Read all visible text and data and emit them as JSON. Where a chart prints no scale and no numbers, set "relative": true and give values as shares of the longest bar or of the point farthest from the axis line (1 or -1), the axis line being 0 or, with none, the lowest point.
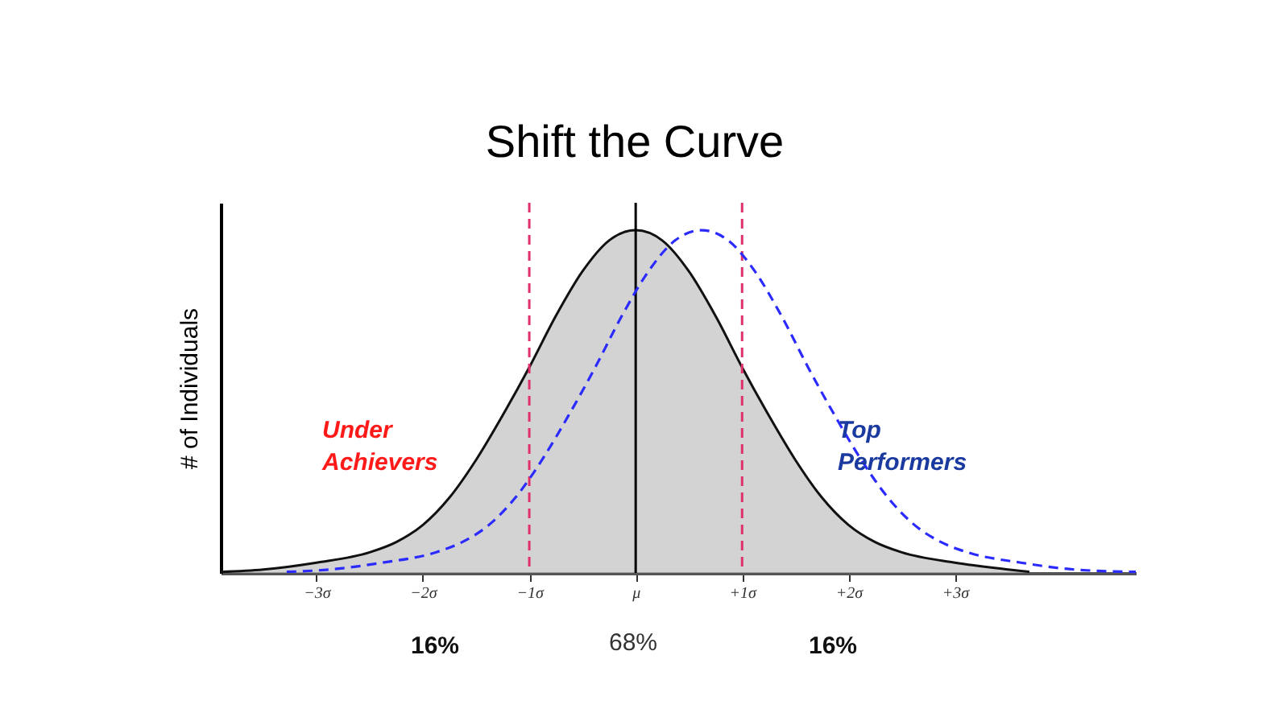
{
  "chart_data": {
    "type": "area",
    "title": "Shift the Curve",
    "ylabel": "# of Individuals",
    "relative": true,
    "xlim": [
      -3.9,
      4.7
    ],
    "xticks": [
      {
        "value": -3,
        "label": "−3σ"
      },
      {
        "value": -2,
        "label": "−2σ"
      },
      {
        "value": -1,
        "label": "−1σ"
      },
      {
        "value": 0,
        "label": "μ"
      },
      {
        "value": 1,
        "label": "+1σ"
      },
      {
        "value": 2,
        "label": "+2σ"
      },
      {
        "value": 3,
        "label": "+3σ"
      }
    ],
    "series": [
      {
        "type": "area",
        "color": "#c0c0c0",
        "x": [
          -3.9,
          -3.5,
          -3,
          -2.5,
          -2.25,
          -2,
          -1.75,
          -1.5,
          -1.25,
          -1,
          -0.75,
          -0.5,
          -0.25,
          0,
          0.25,
          0.5,
          0.75,
          1,
          1.25,
          1.5,
          1.75,
          2,
          2.25,
          2.5,
          3,
          3.5,
          3.7
        ],
        "values": [
          0.003,
          0.01,
          0.03,
          0.06,
          0.09,
          0.14,
          0.22,
          0.33,
          0.46,
          0.6,
          0.75,
          0.88,
          0.97,
          1,
          0.97,
          0.88,
          0.75,
          0.6,
          0.46,
          0.33,
          0.22,
          0.14,
          0.09,
          0.06,
          0.03,
          0.01,
          0.003
        ]
      },
      {
        "type": "line",
        "color": "#2b2bff",
        "line_style": "dashed",
        "x": [
          -3.28,
          -2.88,
          -2.38,
          -1.88,
          -1.63,
          -1.38,
          -1.13,
          -0.88,
          -0.63,
          -0.38,
          -0.13,
          0.12,
          0.37,
          0.62,
          0.87,
          1.12,
          1.37,
          1.62,
          1.87,
          2.12,
          2.37,
          2.62,
          2.87,
          3.12,
          3.62,
          4.12,
          4.7
        ],
        "values": [
          0.003,
          0.01,
          0.03,
          0.06,
          0.09,
          0.14,
          0.22,
          0.33,
          0.46,
          0.6,
          0.75,
          0.88,
          0.97,
          1,
          0.97,
          0.88,
          0.75,
          0.6,
          0.46,
          0.33,
          0.22,
          0.14,
          0.09,
          0.06,
          0.03,
          0.01,
          0.003
        ]
      }
    ],
    "ref_lines": [
      {
        "axis": "x",
        "value": 0,
        "color": "#000000",
        "line_style": "solid"
      },
      {
        "axis": "x",
        "value": -1,
        "color": "#e0306a",
        "line_style": "dashed"
      },
      {
        "axis": "x",
        "value": 1,
        "color": "#e0306a",
        "line_style": "dashed"
      }
    ],
    "annotations": [
      "Under Achievers",
      "Top Performers",
      "16%",
      "68%",
      "16%"
    ],
    "grid": false
  }
}
